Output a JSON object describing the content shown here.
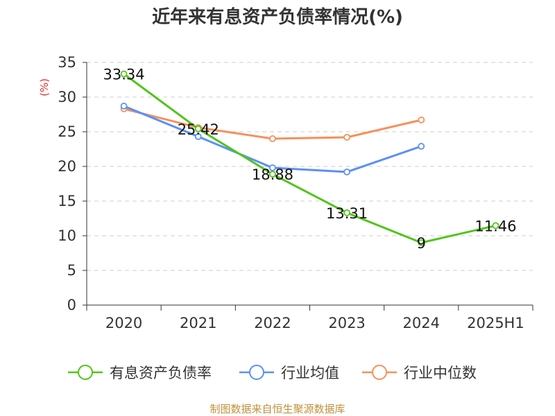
{
  "chart_data": {
    "type": "line",
    "title": "近年来有息资产负债率情况(%)",
    "ylabel": "(%)",
    "xlabel": "",
    "categories": [
      "2020",
      "2021",
      "2022",
      "2023",
      "2024",
      "2025H1"
    ],
    "ylim": [
      0,
      35
    ],
    "yticks": [
      0,
      5,
      10,
      15,
      20,
      25,
      30,
      35
    ],
    "grid": true,
    "legend_position": "bottom",
    "series": [
      {
        "name": "有息资产负债率",
        "color": "#52c41a",
        "values": [
          33.34,
          25.42,
          18.88,
          13.31,
          9,
          11.46
        ],
        "labels": [
          "33.34",
          "25.42",
          "18.88",
          "13.31",
          "9",
          "11.46"
        ]
      },
      {
        "name": "行业均值",
        "color": "#5b8ff9",
        "values": [
          28.7,
          24.3,
          19.8,
          19.2,
          22.9,
          null
        ]
      },
      {
        "name": "行业中位数",
        "color": "#f6905a",
        "values": [
          28.3,
          25.6,
          24.0,
          24.2,
          26.7,
          null
        ]
      }
    ],
    "source": "制图数据来自恒生聚源数据库"
  }
}
